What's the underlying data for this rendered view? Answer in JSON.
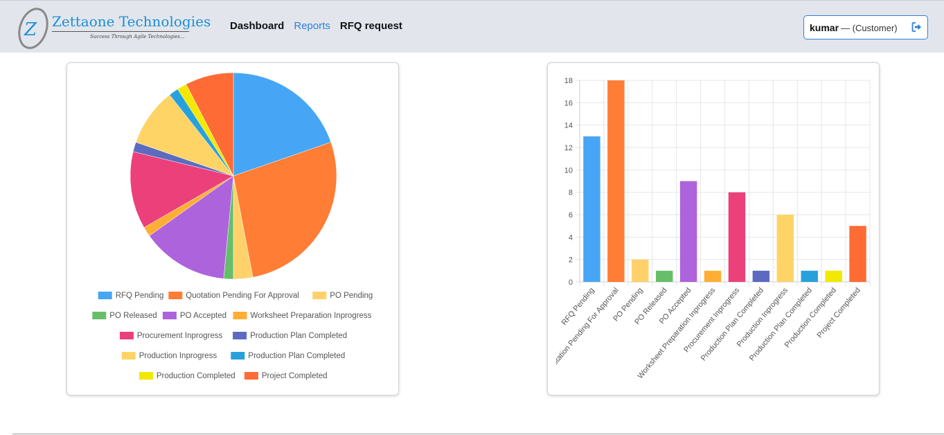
{
  "header": {
    "brand": "Zettaone Technologies",
    "tagline": "Success Through Agile Technologies...",
    "nav": [
      {
        "label": "Dashboard",
        "active": false
      },
      {
        "label": "Reports",
        "active": true
      },
      {
        "label": "RFQ request",
        "active": false
      }
    ],
    "user": {
      "name": "kumar",
      "role": "— (Customer)",
      "logout_icon": "sign-out-icon"
    }
  },
  "colors": {
    "accent": "#2f7fd8",
    "navbar_bg": "#e2e6ec"
  },
  "chart_data": [
    {
      "type": "pie",
      "categories": [
        "RFQ Pending",
        "Quotation Pending For Approval",
        "PO Pending",
        "PO Released",
        "PO Accepted",
        "Worksheet Preparation Inprogress",
        "Procurement Inprogress",
        "Production Plan Completed",
        "Production Inprogress",
        "Production Plan Completed",
        "Production Completed",
        "Project Completed"
      ],
      "values": [
        13,
        18,
        2,
        1,
        9,
        1,
        8,
        1,
        6,
        1,
        1,
        5
      ],
      "colors": [
        "#46a6f5",
        "#ff7d34",
        "#ffd16a",
        "#67be6a",
        "#ad63db",
        "#ffae34",
        "#ec407a",
        "#5c6bc0",
        "#ffd466",
        "#27a1db",
        "#f2e800",
        "#ff6b35"
      ],
      "legend": "bottom"
    },
    {
      "type": "bar",
      "categories": [
        "RFQ Pending",
        "Quotation Pending For Approval",
        "PO Pending",
        "PO Released",
        "PO Accepted",
        "Worksheet Preparation Inprogress",
        "Procurement Inprogress",
        "Production Plan Completed",
        "Production Inprogress",
        "Production Plan Completed",
        "Production Completed",
        "Project Completed"
      ],
      "values": [
        13,
        18,
        2,
        1,
        9,
        1,
        8,
        1,
        6,
        1,
        1,
        5
      ],
      "colors": [
        "#46a6f5",
        "#ff7d34",
        "#ffd16a",
        "#67be6a",
        "#ad63db",
        "#ffae34",
        "#ec407a",
        "#5c6bc0",
        "#ffd466",
        "#27a1db",
        "#f2e800",
        "#ff6b35"
      ],
      "ylim": [
        0,
        18
      ],
      "yticks": [
        0,
        2,
        4,
        6,
        8,
        10,
        12,
        14,
        16,
        18
      ],
      "grid": true,
      "legend": "none"
    }
  ]
}
